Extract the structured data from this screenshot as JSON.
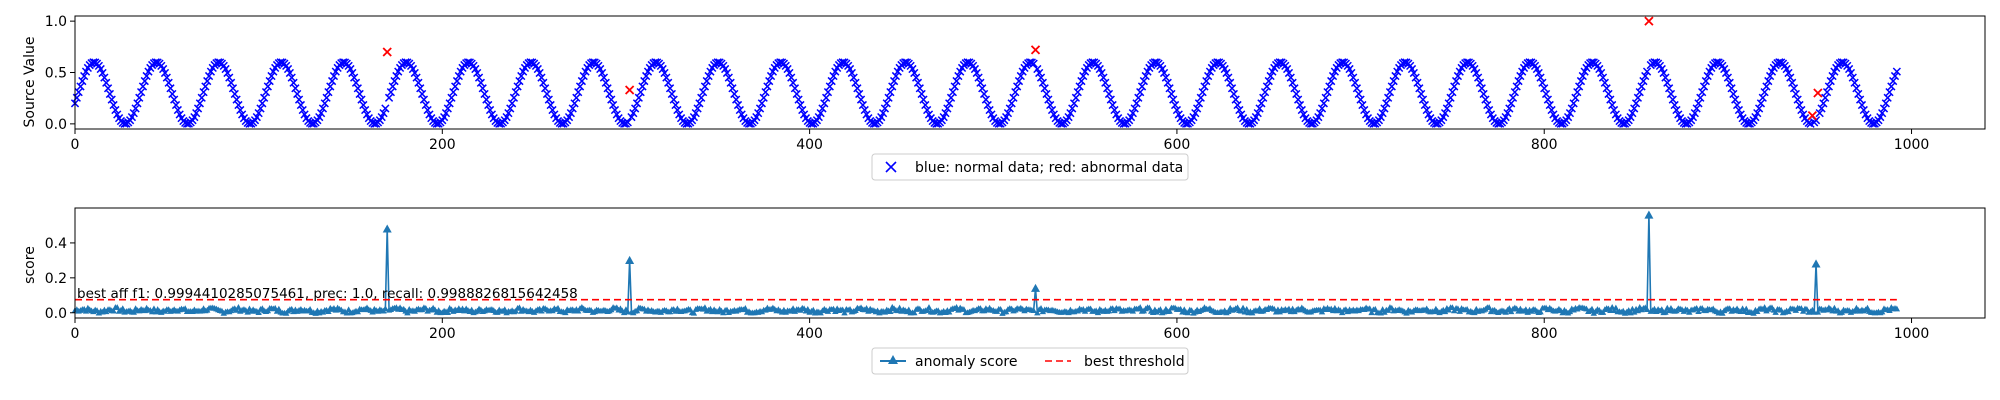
{
  "chart_data": [
    {
      "type": "scatter",
      "ylabel": "Source Value",
      "xlim": [
        0,
        1040
      ],
      "ylim": [
        -0.05,
        1.05
      ],
      "xticks": [
        0,
        200,
        400,
        600,
        800,
        1000
      ],
      "xtick_labels": [
        "0",
        "200",
        "400",
        "600",
        "800",
        "1000"
      ],
      "yticks": [
        0.0,
        0.5,
        1.0
      ],
      "ytick_labels": [
        "0.0",
        "0.5",
        "1.0"
      ],
      "legend": "blue: normal data; red: abnormal data",
      "legend_position": "below center",
      "normal_signal": {
        "n_points": 993,
        "period": 34,
        "amplitude": 0.3,
        "offset": 0.3,
        "phase_x": 0,
        "start_value": 0.2
      },
      "series": [
        {
          "name": "normal",
          "color": "#0000ff",
          "marker": "x"
        },
        {
          "name": "abnormal",
          "color": "#ff0000",
          "marker": "x",
          "points": [
            {
              "x": 170,
              "y": 0.7
            },
            {
              "x": 302,
              "y": 0.33
            },
            {
              "x": 523,
              "y": 0.72
            },
            {
              "x": 857,
              "y": 1.0
            },
            {
              "x": 946,
              "y": 0.08
            },
            {
              "x": 949,
              "y": 0.3
            }
          ]
        }
      ]
    },
    {
      "type": "line",
      "ylabel": "score",
      "xlim": [
        0,
        1040
      ],
      "ylim": [
        -0.03,
        0.6
      ],
      "xticks": [
        0,
        200,
        400,
        600,
        800,
        1000
      ],
      "xtick_labels": [
        "0",
        "200",
        "400",
        "600",
        "800",
        "1000"
      ],
      "yticks": [
        0.0,
        0.2,
        0.4
      ],
      "ytick_labels": [
        "0.0",
        "0.2",
        "0.4"
      ],
      "annotation": "best aff f1: 0.9994410285075461, prec: 1.0, recall: 0.9988826815642458",
      "threshold": 0.075,
      "baseline_noise": {
        "mean": 0.015,
        "amplitude": 0.015
      },
      "series": [
        {
          "name": "anomaly score",
          "color": "#1f77b4",
          "marker": "^",
          "peaks": [
            {
              "x": 170,
              "y": 0.48
            },
            {
              "x": 302,
              "y": 0.3
            },
            {
              "x": 523,
              "y": 0.14
            },
            {
              "x": 857,
              "y": 0.56
            },
            {
              "x": 948,
              "y": 0.28
            }
          ]
        },
        {
          "name": "best threshold",
          "color": "#ff0000",
          "style": "dashed"
        }
      ],
      "legend_position": "below center"
    }
  ]
}
